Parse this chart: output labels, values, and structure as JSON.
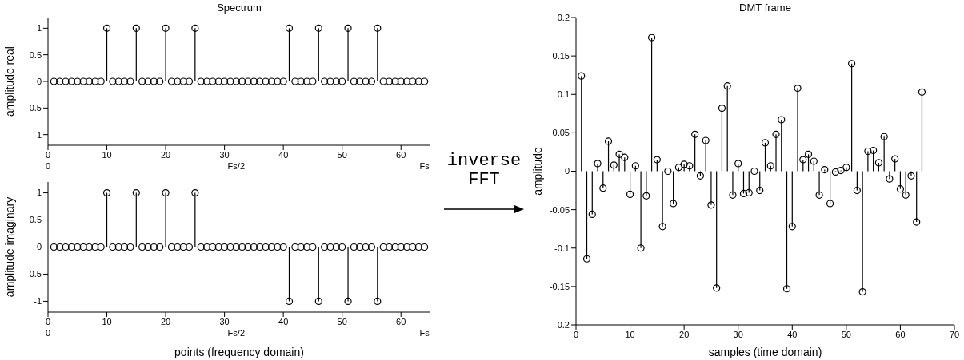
{
  "chart_data": [
    {
      "type": "lollipop",
      "title": "Spectrum",
      "ylabel": "amplitude real",
      "color": "#000000",
      "marker": "circle",
      "x": [
        1,
        2,
        3,
        4,
        5,
        6,
        7,
        8,
        9,
        10,
        11,
        12,
        13,
        14,
        15,
        16,
        17,
        18,
        19,
        20,
        21,
        22,
        23,
        24,
        25,
        26,
        27,
        28,
        29,
        30,
        31,
        32,
        33,
        34,
        35,
        36,
        37,
        38,
        39,
        40,
        41,
        42,
        43,
        44,
        45,
        46,
        47,
        48,
        49,
        50,
        51,
        52,
        53,
        54,
        55,
        56,
        57,
        58,
        59,
        60,
        61,
        62,
        63,
        64
      ],
      "values": [
        0,
        0,
        0,
        0,
        0,
        0,
        0,
        0,
        0,
        1,
        0,
        0,
        0,
        0,
        1,
        0,
        0,
        0,
        0,
        1,
        0,
        0,
        0,
        0,
        1,
        0,
        0,
        0,
        0,
        0,
        0,
        0,
        0,
        0,
        0,
        0,
        0,
        0,
        0,
        0,
        1,
        0,
        0,
        0,
        0,
        1,
        0,
        0,
        0,
        0,
        1,
        0,
        0,
        0,
        0,
        1,
        0,
        0,
        0,
        0,
        0,
        0,
        0,
        0
      ],
      "xlim": [
        0,
        65
      ],
      "xticks": [
        0,
        10,
        20,
        30,
        40,
        50,
        60
      ],
      "ylim": [
        -1.2,
        1.2
      ],
      "yticks": [
        -1,
        -0.5,
        0,
        0.5,
        1
      ],
      "annotations": [
        "0",
        "Fs/2",
        "Fs"
      ]
    },
    {
      "type": "lollipop",
      "xlabel": "points (frequency domain)",
      "ylabel": "amplitude imaginary",
      "color": "#000000",
      "marker": "circle",
      "x": [
        1,
        2,
        3,
        4,
        5,
        6,
        7,
        8,
        9,
        10,
        11,
        12,
        13,
        14,
        15,
        16,
        17,
        18,
        19,
        20,
        21,
        22,
        23,
        24,
        25,
        26,
        27,
        28,
        29,
        30,
        31,
        32,
        33,
        34,
        35,
        36,
        37,
        38,
        39,
        40,
        41,
        42,
        43,
        44,
        45,
        46,
        47,
        48,
        49,
        50,
        51,
        52,
        53,
        54,
        55,
        56,
        57,
        58,
        59,
        60,
        61,
        62,
        63,
        64
      ],
      "values": [
        0,
        0,
        0,
        0,
        0,
        0,
        0,
        0,
        0,
        1,
        0,
        0,
        0,
        0,
        1,
        0,
        0,
        0,
        0,
        1,
        0,
        0,
        0,
        0,
        1,
        0,
        0,
        0,
        0,
        0,
        0,
        0,
        0,
        0,
        0,
        0,
        0,
        0,
        0,
        0,
        -1,
        0,
        0,
        0,
        0,
        -1,
        0,
        0,
        0,
        0,
        -1,
        0,
        0,
        0,
        0,
        -1,
        0,
        0,
        0,
        0,
        0,
        0,
        0,
        0
      ],
      "xlim": [
        0,
        65
      ],
      "xticks": [
        0,
        10,
        20,
        30,
        40,
        50,
        60
      ],
      "ylim": [
        -1.2,
        1.2
      ],
      "yticks": [
        -1,
        -0.5,
        0,
        0.5,
        1
      ],
      "annotations": [
        "0",
        "Fs/2",
        "Fs"
      ]
    },
    {
      "type": "other",
      "annotations": [
        "inverse FFT"
      ]
    },
    {
      "type": "lollipop",
      "title": "DMT frame",
      "xlabel": "samples (time domain)",
      "ylabel": "amplitude",
      "color": "#000000",
      "marker": "circle",
      "x": [
        1,
        2,
        3,
        4,
        5,
        6,
        7,
        8,
        9,
        10,
        11,
        12,
        13,
        14,
        15,
        16,
        17,
        18,
        19,
        20,
        21,
        22,
        23,
        24,
        25,
        26,
        27,
        28,
        29,
        30,
        31,
        32,
        33,
        34,
        35,
        36,
        37,
        38,
        39,
        40,
        41,
        42,
        43,
        44,
        45,
        46,
        47,
        48,
        49,
        50,
        51,
        52,
        53,
        54,
        55,
        56,
        57,
        58,
        59,
        60,
        61,
        62,
        63,
        64
      ],
      "values": [
        0.124,
        -0.114,
        -0.056,
        0.01,
        -0.022,
        0.039,
        0.008,
        0.022,
        0.018,
        -0.03,
        0.007,
        -0.1,
        -0.032,
        0.174,
        0.015,
        -0.072,
        0.0,
        -0.042,
        0.005,
        0.009,
        0.007,
        0.048,
        -0.006,
        0.04,
        -0.044,
        -0.152,
        0.082,
        0.111,
        -0.031,
        0.01,
        -0.029,
        -0.028,
        0.0,
        -0.025,
        0.037,
        0.007,
        0.048,
        0.067,
        -0.153,
        -0.072,
        0.108,
        0.015,
        0.022,
        0.013,
        -0.031,
        0.002,
        -0.042,
        -0.001,
        0.001,
        0.005,
        0.14,
        -0.025,
        -0.157,
        0.026,
        0.027,
        0.011,
        0.045,
        -0.01,
        0.016,
        -0.023,
        -0.031,
        -0.006,
        -0.066,
        0.103
      ],
      "xlim": [
        0,
        70
      ],
      "xticks": [
        0,
        10,
        20,
        30,
        40,
        50,
        60,
        70
      ],
      "ylim": [
        -0.2,
        0.2
      ],
      "yticks": [
        -0.2,
        -0.15,
        -0.1,
        -0.05,
        0,
        0.05,
        0.1,
        0.15,
        0.2
      ]
    }
  ]
}
